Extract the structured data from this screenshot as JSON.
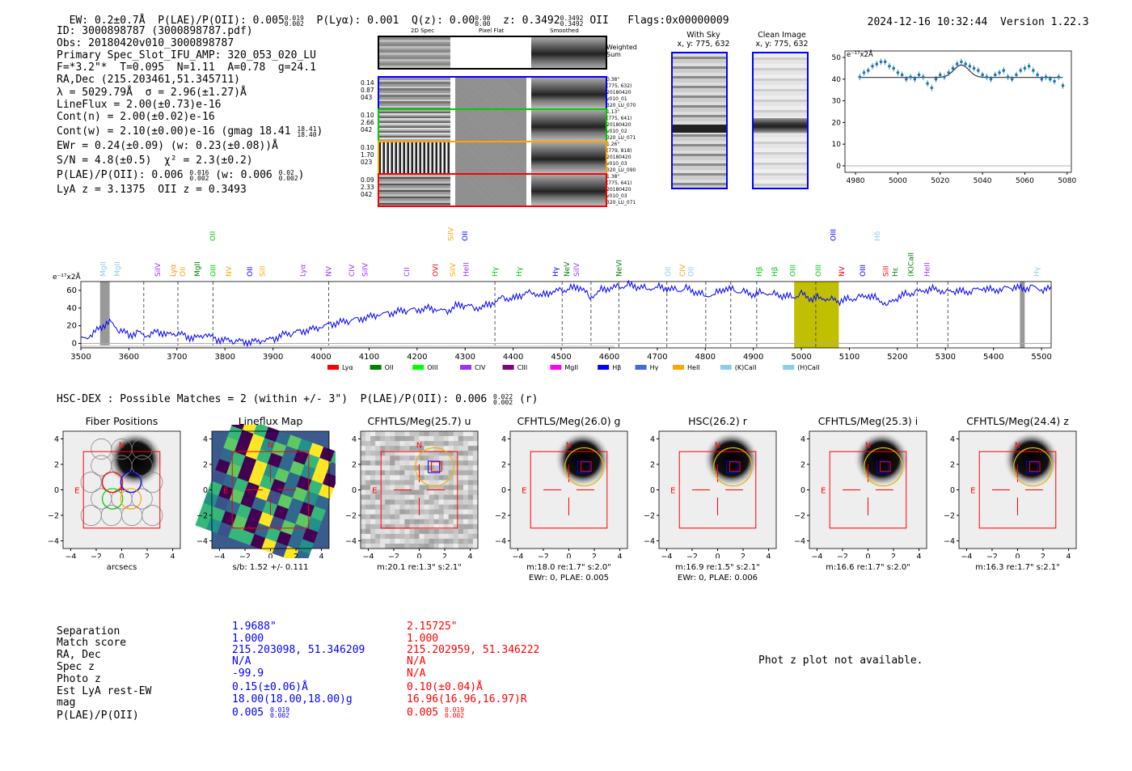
{
  "header": {
    "ew": "EW: 0.2±0.7Å",
    "plae_label": "P(LAE)/P(OII): 0.005",
    "plae_sup": "0.019",
    "plae_sub": "0.002",
    "plya": "P(Lyα): 0.001",
    "qz_label": "Q(z): 0.00",
    "qz_sup": "0.00",
    "qz_sub": "0.00",
    "z_label": "z: 0.3492",
    "z_sup": "0.3492",
    "z_sub": "0.3492",
    "z_line": "OII",
    "flags": "Flags:0x00000009",
    "timestamp": "2024-12-16 10:32:44",
    "version": "Version 1.22.3"
  },
  "info": {
    "id": "ID: 3000898787 (3000898787.pdf)",
    "obs": "Obs: 20180420v010_3000898787",
    "primary": "Primary Spec_Slot_IFU_AMP: 320_053_020_LU",
    "params": "F=*3.2\"*  T=0.095  N=1.11  A=0.78  g=24.1",
    "radec": "RA,Dec (215.203461,51.345711)",
    "lambda": "λ = 5029.79Å  σ = 2.96(±1.27)Å",
    "lineflux": "LineFlux = 2.00(±0.73)e-16",
    "contn": "Cont(n) = 2.00(±0.02)e-16",
    "contw_label": "Cont(w) = 2.10(±0.00)e-16 (gmag 18.41",
    "contw_sup": "18.41",
    "contw_sub": "18.40",
    "contw_end": ")",
    "ewr": "EWr = 0.24(±0.09) (w: 0.23(±0.08))Å",
    "sn": "S/N = 4.8(±0.5)  χ² = 2.3(±0.2)",
    "plae_label": "P(LAE)/P(OII): 0.006",
    "plae_sup": "0.016",
    "plae_sub": "0.002",
    "plae_w_label": "(w: 0.006",
    "plae_w_sup": "0.02",
    "plae_w_sub": "0.002",
    "plae_end": ")",
    "lyaz": "LyA z = 3.1375  OII z = 0.3493"
  },
  "cutouts2d": {
    "col_titles": [
      "2D Spec",
      "Pixel Flat",
      "Smoothed"
    ],
    "weighted_sum": "Weighted Sum",
    "rows": [
      {
        "left": [
          "0.14",
          "0.87",
          "043"
        ],
        "right": [
          "0.38\"",
          "(775, 632)",
          "20180420",
          "v010_01",
          "320_LU_070"
        ],
        "color": "#0000ff"
      },
      {
        "left": [
          "0.10",
          "2.66",
          "042"
        ],
        "right": [
          "1.13\"",
          "(775, 641)",
          "20180420",
          "v010_02",
          "320_LU_071"
        ],
        "color": "#00cc00"
      },
      {
        "left": [
          "0.10",
          "1.70",
          "023"
        ],
        "right": [
          "1.26\"",
          "(779, 818)",
          "20180420",
          "v010_03",
          "320_LU_090"
        ],
        "color": "#ffa500"
      },
      {
        "left": [
          "0.09",
          "2.33",
          "042"
        ],
        "right": [
          "1.38\"",
          "(775, 641)",
          "20180420",
          "v010_03",
          "320_LU_071"
        ],
        "color": "#ff0000"
      }
    ],
    "with_sky_title": "With Sky",
    "with_sky_xy": "x, y: 775, 632",
    "clean_title": "Clean Image",
    "clean_xy": "x, y: 775, 632"
  },
  "zoom_chart": {
    "unit_label": "e⁻¹⁷x2Å",
    "x_ticks": [
      4980,
      5000,
      5020,
      5040,
      5060,
      5080
    ],
    "y_ticks": [
      0,
      10,
      20,
      30,
      40,
      50
    ],
    "xlim": [
      4975,
      5082
    ],
    "ylim": [
      -3,
      53
    ],
    "data_x": [
      4982,
      4984,
      4986,
      4988,
      4990,
      4992,
      4994,
      4996,
      4998,
      5000,
      5002,
      5004,
      5006,
      5008,
      5010,
      5012,
      5014,
      5016,
      5018,
      5020,
      5022,
      5024,
      5026,
      5028,
      5030,
      5032,
      5034,
      5036,
      5038,
      5040,
      5042,
      5044,
      5046,
      5048,
      5050,
      5052,
      5054,
      5056,
      5058,
      5060,
      5062,
      5064,
      5066,
      5068,
      5070,
      5072,
      5074,
      5076,
      5078
    ],
    "data_y": [
      41,
      43,
      44,
      46,
      47,
      48,
      48,
      46,
      45,
      43,
      42,
      40,
      41,
      40,
      42,
      41,
      38,
      36,
      40,
      42,
      41,
      43,
      45,
      47,
      48,
      47,
      46,
      45,
      44,
      42,
      41,
      40,
      42,
      43,
      44,
      41,
      40,
      42,
      44,
      45,
      46,
      44,
      42,
      40,
      41,
      40,
      39,
      41,
      37
    ],
    "fit_baseline": 40.8,
    "fit_peak": 46.5,
    "fit_center": 5030,
    "fit_sigma": 3.5
  },
  "main_chart": {
    "unit_label": "e⁻¹⁷x2Å",
    "x_ticks": [
      3500,
      3600,
      3700,
      3800,
      3900,
      4000,
      4100,
      4200,
      4300,
      4400,
      4500,
      4600,
      4700,
      4800,
      4900,
      5000,
      5100,
      5200,
      5300,
      5400,
      5500
    ],
    "y_ticks": [
      0,
      20,
      40,
      60
    ],
    "xlim": [
      3500,
      5520
    ],
    "ylim": [
      -5,
      70
    ],
    "highlight": {
      "x0": 4985,
      "x1": 5078,
      "color": "#c0c000"
    },
    "gray_bands": [
      {
        "x0": 3540,
        "x1": 3560
      },
      {
        "x0": 5455,
        "x1": 5465
      }
    ],
    "dashed_lines": [
      3631,
      3702,
      3775,
      4016,
      4362,
      4502,
      4562,
      4620,
      4720,
      4801,
      4853,
      4907,
      5030,
      5241,
      5305
    ],
    "spectrum_points": [
      [
        3500,
        5
      ],
      [
        3520,
        8
      ],
      [
        3540,
        18
      ],
      [
        3560,
        25
      ],
      [
        3580,
        15
      ],
      [
        3600,
        10
      ],
      [
        3620,
        12
      ],
      [
        3640,
        8
      ],
      [
        3660,
        14
      ],
      [
        3680,
        10
      ],
      [
        3700,
        12
      ],
      [
        3720,
        8
      ],
      [
        3740,
        6
      ],
      [
        3760,
        10
      ],
      [
        3780,
        5
      ],
      [
        3800,
        4
      ],
      [
        3820,
        3
      ],
      [
        3840,
        2
      ],
      [
        3860,
        2
      ],
      [
        3880,
        3
      ],
      [
        3900,
        5
      ],
      [
        3920,
        10
      ],
      [
        3940,
        12
      ],
      [
        3960,
        14
      ],
      [
        3980,
        16
      ],
      [
        4000,
        18
      ],
      [
        4020,
        22
      ],
      [
        4040,
        24
      ],
      [
        4060,
        26
      ],
      [
        4080,
        28
      ],
      [
        4100,
        30
      ],
      [
        4120,
        32
      ],
      [
        4140,
        34
      ],
      [
        4160,
        36
      ],
      [
        4180,
        38
      ],
      [
        4200,
        38
      ],
      [
        4220,
        40
      ],
      [
        4240,
        38
      ],
      [
        4260,
        36
      ],
      [
        4280,
        42
      ],
      [
        4300,
        44
      ],
      [
        4320,
        40
      ],
      [
        4340,
        42
      ],
      [
        4360,
        46
      ],
      [
        4380,
        52
      ],
      [
        4400,
        50
      ],
      [
        4420,
        56
      ],
      [
        4440,
        58
      ],
      [
        4460,
        54
      ],
      [
        4480,
        58
      ],
      [
        4500,
        60
      ],
      [
        4520,
        62
      ],
      [
        4540,
        64
      ],
      [
        4560,
        52
      ],
      [
        4580,
        60
      ],
      [
        4600,
        62
      ],
      [
        4620,
        64
      ],
      [
        4640,
        66
      ],
      [
        4660,
        64
      ],
      [
        4680,
        62
      ],
      [
        4700,
        64
      ],
      [
        4720,
        62
      ],
      [
        4740,
        60
      ],
      [
        4760,
        62
      ],
      [
        4780,
        58
      ],
      [
        4800,
        54
      ],
      [
        4820,
        56
      ],
      [
        4840,
        62
      ],
      [
        4860,
        60
      ],
      [
        4880,
        58
      ],
      [
        4900,
        55
      ],
      [
        4920,
        58
      ],
      [
        4940,
        56
      ],
      [
        4960,
        54
      ],
      [
        4980,
        52
      ],
      [
        5000,
        56
      ],
      [
        5020,
        50
      ],
      [
        5040,
        52
      ],
      [
        5060,
        50
      ],
      [
        5080,
        48
      ],
      [
        5100,
        50
      ],
      [
        5120,
        52
      ],
      [
        5140,
        54
      ],
      [
        5160,
        50
      ],
      [
        5180,
        44
      ],
      [
        5200,
        52
      ],
      [
        5220,
        56
      ],
      [
        5240,
        58
      ],
      [
        5260,
        60
      ],
      [
        5280,
        62
      ],
      [
        5300,
        58
      ],
      [
        5320,
        60
      ],
      [
        5340,
        58
      ],
      [
        5360,
        60
      ],
      [
        5380,
        62
      ],
      [
        5400,
        60
      ],
      [
        5420,
        62
      ],
      [
        5440,
        64
      ],
      [
        5460,
        62
      ],
      [
        5480,
        64
      ],
      [
        5500,
        60
      ],
      [
        5520,
        62
      ]
    ],
    "line_labels": [
      {
        "x": 3546,
        "text": "MgII",
        "color": "#87ceeb"
      },
      {
        "x": 3576,
        "text": "MgII",
        "color": "#87ceeb"
      },
      {
        "x": 3660,
        "text": "SiIV",
        "color": "#9b30ff"
      },
      {
        "x": 3692,
        "text": "Lyα",
        "color": "#ff8c00"
      },
      {
        "x": 3712,
        "text": "OII",
        "color": "#ffa500"
      },
      {
        "x": 3742,
        "text": "MgII",
        "color": "#008000"
      },
      {
        "x": 3775,
        "text": "OIII",
        "color": "#00cc00"
      },
      {
        "x": 3808,
        "text": "NV",
        "color": "#ffa500"
      },
      {
        "x": 3852,
        "text": "OII",
        "color": "#0000ff"
      },
      {
        "x": 3878,
        "text": "SiII",
        "color": "#ffa500"
      },
      {
        "x": 3962,
        "text": "Lyα",
        "color": "#9b30ff"
      },
      {
        "x": 4016,
        "text": "NV",
        "color": "#9b30ff"
      },
      {
        "x": 4064,
        "text": "CIV",
        "color": "#9b30ff"
      },
      {
        "x": 4092,
        "text": "SiIV",
        "color": "#9b30ff"
      },
      {
        "x": 4178,
        "text": "CII",
        "color": "#9b30ff"
      },
      {
        "x": 4238,
        "text": "OVI",
        "color": "#ff0000"
      },
      {
        "x": 4274,
        "text": "SiIV",
        "color": "#ffa500"
      },
      {
        "x": 4302,
        "text": "HeII",
        "color": "#9b30ff"
      },
      {
        "x": 4362,
        "text": "Hγ",
        "color": "#00cc00"
      },
      {
        "x": 4412,
        "text": "Hγ",
        "color": "#00cc00"
      },
      {
        "x": 4488,
        "text": "Hγ",
        "color": "#0000ff"
      },
      {
        "x": 4512,
        "text": "NeV",
        "color": "#008000"
      },
      {
        "x": 4532,
        "text": "SiIV",
        "color": "#9b30ff"
      },
      {
        "x": 4620,
        "text": "NeVI",
        "color": "#008000"
      },
      {
        "x": 4722,
        "text": "OII",
        "color": "#87ceeb"
      },
      {
        "x": 4752,
        "text": "CIV",
        "color": "#ffa500"
      },
      {
        "x": 4770,
        "text": "OII",
        "color": "#87ceeb"
      },
      {
        "x": 4912,
        "text": "Hβ",
        "color": "#00cc00"
      },
      {
        "x": 4944,
        "text": "Hβ",
        "color": "#00cc00"
      },
      {
        "x": 4982,
        "text": "OIII",
        "color": "#00cc00"
      },
      {
        "x": 5035,
        "text": "OIII",
        "color": "#00cc00"
      },
      {
        "x": 5084,
        "text": "NV",
        "color": "#ff0000"
      },
      {
        "x": 5128,
        "text": "OIII",
        "color": "#0000ff"
      },
      {
        "x": 5176,
        "text": "SiII",
        "color": "#ff0000"
      },
      {
        "x": 5195,
        "text": "Hε",
        "color": "#008000"
      },
      {
        "x": 5228,
        "text": "(K)CaII",
        "color": "#008000"
      },
      {
        "x": 5262,
        "text": "HeII",
        "color": "#9b30ff"
      },
      {
        "x": 5490,
        "text": "Hγ",
        "color": "#87ceeb"
      }
    ],
    "high_labels": [
      {
        "x": 3774,
        "text": "OII",
        "color": "#00cc00"
      },
      {
        "x": 4270,
        "text": "SiIV",
        "color": "#ffa500"
      },
      {
        "x": 4300,
        "text": "OII",
        "color": "#0000ff"
      },
      {
        "x": 5066,
        "text": "OIII",
        "color": "#0000ff"
      },
      {
        "x": 5158,
        "text": "Hδ",
        "color": "#87ceeb"
      }
    ],
    "legend": [
      {
        "label": "Lyα",
        "color": "#ff0000"
      },
      {
        "label": "OII",
        "color": "#008000"
      },
      {
        "label": "OIII",
        "color": "#00ff00"
      },
      {
        "label": "CIV",
        "color": "#9b30ff"
      },
      {
        "label": "CIII",
        "color": "#800080"
      },
      {
        "label": "MgII",
        "color": "#ff00ff"
      },
      {
        "label": "Hβ",
        "color": "#0000ff"
      },
      {
        "label": "Hγ",
        "color": "#4169e1"
      },
      {
        "label": "HeII",
        "color": "#ffa500"
      },
      {
        "label": "(K)CaII",
        "color": "#87ceeb"
      },
      {
        "label": "(H)CaII",
        "color": "#87ceeb"
      }
    ]
  },
  "hsc": {
    "title_label": "HSC-DEX : Possible Matches = 2 (within +/- 3\")  P(LAE)/P(OII): 0.006",
    "title_sup": "0.022",
    "title_sub": "0.002",
    "title_end": "(r)",
    "axis_ticks": [
      "4",
      "2",
      "0",
      "−2",
      "−4"
    ],
    "x_ticks": [
      "−4",
      "−2",
      "0",
      "2",
      "4"
    ],
    "panels": [
      {
        "title": "Fiber Positions",
        "sub1": "arcsecs",
        "sub2": "",
        "kind": "fiber"
      },
      {
        "title": "Lineflux Map",
        "sub1": "s/b: 1.52 +/- 0.111",
        "sub2": "",
        "kind": "lineflux"
      },
      {
        "title": "CFHTLS/Meg(25.7) u",
        "sub1": "m:20.1  re:1.3\"  s:2.1\"",
        "sub2": "",
        "kind": "noise"
      },
      {
        "title": "CFHTLS/Meg(26.0) g",
        "sub1": "m:18.0  re:1.7\"  s:2.0\"",
        "sub2": "EWr: 0, PLAE: 0.005",
        "kind": "star"
      },
      {
        "title": "HSC(26.2) r",
        "sub1": "m:16.9  re:1.5\"  s:2.1\"",
        "sub2": "EWr: 0, PLAE: 0.006",
        "kind": "star"
      },
      {
        "title": "CFHTLS/Meg(25.3) i",
        "sub1": "m:16.6  re:1.7\"  s:2.0\"",
        "sub2": "",
        "kind": "star"
      },
      {
        "title": "CFHTLS/Meg(24.4) z",
        "sub1": "m:16.3  re:1.7\"  s:2.1\"",
        "sub2": "",
        "kind": "star"
      }
    ],
    "n_label": "N",
    "e_label": "E"
  },
  "table": {
    "labels": [
      "Separation",
      "Match score",
      "RA, Dec",
      "Spec z",
      "Photo z",
      "Est LyA rest-EW",
      "mag",
      "P(LAE)/P(OII)"
    ],
    "blue": [
      "1.9688\"",
      "1.000",
      "215.203098, 51.346209",
      "N/A",
      "-99.9",
      "0.15(±0.06)Å",
      "18.00(18.00,18.00)g"
    ],
    "blue_plae": "0.005",
    "blue_plae_sup": "0.019",
    "blue_plae_sub": "0.002",
    "red": [
      "2.15725\"",
      "1.000",
      "215.202959, 51.346222",
      "N/A",
      "N/A",
      "0.10(±0.04)Å",
      "16.96(16.96,16.97)R"
    ],
    "red_plae": "0.005",
    "red_plae_sup": "0.019",
    "red_plae_sub": "0.002",
    "photz_msg": "Phot z plot not available."
  },
  "colors": {
    "spectrum": "#0000ff",
    "zoom_points": "#1f77b4",
    "cut_red": "#ff0000",
    "cut_yellow": "#e8b400",
    "cut_blue": "#0000ff"
  }
}
